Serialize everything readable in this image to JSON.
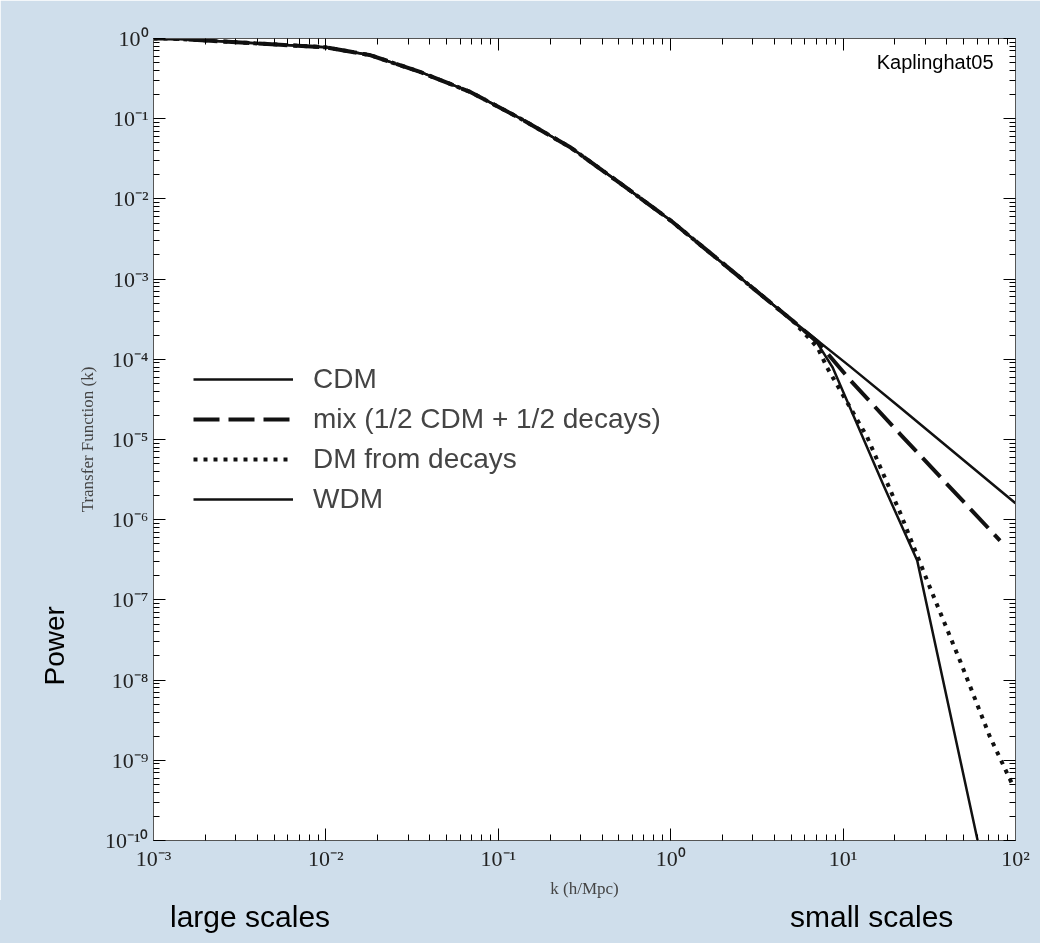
{
  "chart_data": {
    "type": "line",
    "xlabel": "k (h/Mpc)",
    "ylabel": "Transfer Function (k)",
    "log": "xy",
    "xlim": [
      0.001,
      100
    ],
    "ylim": [
      1e-10,
      1
    ],
    "xticks": [
      {
        "value": 0.001,
        "label": "10⁻³"
      },
      {
        "value": 0.01,
        "label": "10⁻²"
      },
      {
        "value": 0.1,
        "label": "10⁻¹"
      },
      {
        "value": 1,
        "label": "10⁰"
      },
      {
        "value": 10,
        "label": "10¹"
      },
      {
        "value": 100,
        "label": "10²"
      }
    ],
    "yticks": [
      {
        "value": 1,
        "label": "10⁰"
      },
      {
        "value": 0.1,
        "label": "10⁻¹"
      },
      {
        "value": 0.01,
        "label": "10⁻²"
      },
      {
        "value": 0.001,
        "label": "10⁻³"
      },
      {
        "value": 0.0001,
        "label": "10⁻⁴"
      },
      {
        "value": 1e-05,
        "label": "10⁻⁵"
      },
      {
        "value": 1e-06,
        "label": "10⁻⁶"
      },
      {
        "value": 1e-07,
        "label": "10⁻⁷"
      },
      {
        "value": 1e-08,
        "label": "10⁻⁸"
      },
      {
        "value": 1e-09,
        "label": "10⁻⁹"
      },
      {
        "value": 1e-10,
        "label": "10⁻¹⁰"
      }
    ],
    "grid": false,
    "legend": "left",
    "annotations": [
      "Kaplinghat05",
      "Power",
      "large scales",
      "small scales"
    ],
    "series": [
      {
        "name": "CDM",
        "color": "#111111",
        "line_style": "solid",
        "x": [
          0.001,
          0.00126,
          0.01,
          0.0182,
          0.0355,
          0.0692,
          0.135,
          0.263,
          0.513,
          1,
          2.0,
          5.1,
          11,
          21.4,
          100
        ],
        "values": [
          1,
          1,
          0.776,
          0.617,
          0.38,
          0.214,
          0.1,
          0.0437,
          0.0155,
          0.00537,
          0.00158,
          0.000302,
          8.1e-05,
          2.5e-05,
          1.6e-06
        ]
      },
      {
        "name": "mix (1/2 CDM + 1/2 decays)",
        "color": "#111111",
        "line_style": "dashed",
        "x": [
          0.001,
          0.00126,
          0.01,
          0.0182,
          0.0355,
          0.0692,
          0.135,
          0.263,
          0.513,
          1,
          2.0,
          5.1,
          7.1,
          11,
          21.4,
          81.3
        ],
        "values": [
          1,
          1,
          0.776,
          0.617,
          0.38,
          0.214,
          0.1,
          0.0437,
          0.0155,
          0.00537,
          0.00158,
          0.000302,
          0.000166,
          5.5e-05,
          1.17e-05,
          5.5e-07
        ]
      },
      {
        "name": "DM from decays",
        "color": "#111111",
        "line_style": "dotted",
        "x": [
          0.001,
          0.00126,
          0.01,
          0.0182,
          0.0355,
          0.0692,
          0.135,
          0.263,
          0.513,
          1,
          2.0,
          5.1,
          7.1,
          8.1,
          13.8,
          21.4,
          31.6,
          47.9,
          70.8,
          95.5
        ],
        "values": [
          1,
          1,
          0.776,
          0.617,
          0.38,
          0.214,
          0.1,
          0.0437,
          0.0155,
          0.00537,
          0.00158,
          0.000302,
          0.000141,
          7.8e-05,
          1.07e-05,
          1.23e-06,
          1.5e-07,
          1.7e-08,
          2e-09,
          5.1e-10
        ]
      },
      {
        "name": "WDM",
        "color": "#111111",
        "line_style": "solid",
        "x": [
          0.001,
          0.00126,
          0.01,
          0.0182,
          0.0355,
          0.0692,
          0.135,
          0.263,
          0.513,
          1,
          2.0,
          5.1,
          7.1,
          8.7,
          17,
          26.9,
          60.3
        ],
        "values": [
          1,
          1,
          0.776,
          0.617,
          0.38,
          0.214,
          0.1,
          0.0437,
          0.0155,
          0.00537,
          0.00158,
          0.000302,
          0.000158,
          7.9e-05,
          2.8e-06,
          3.1e-07,
          1e-10
        ]
      }
    ]
  }
}
